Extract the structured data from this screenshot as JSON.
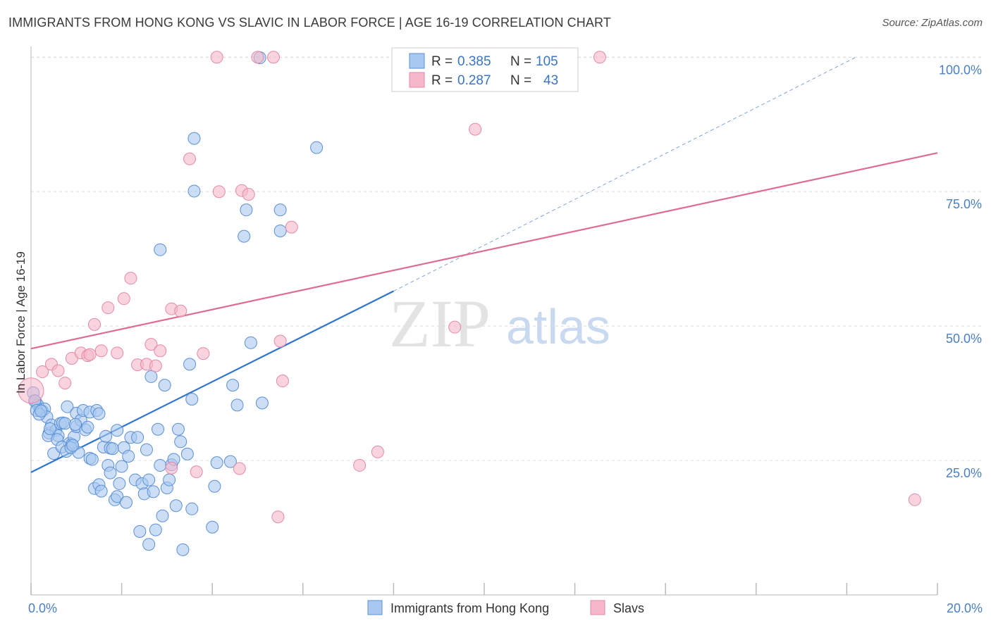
{
  "title": "IMMIGRANTS FROM HONG KONG VS SLAVIC IN LABOR FORCE | AGE 16-19 CORRELATION CHART",
  "source": "Source: ZipAtlas.com",
  "watermark": {
    "zip": "ZIP",
    "atlas": "atlas"
  },
  "colors": {
    "blue_fill": "#a9c8ef",
    "blue_stroke": "#5b8fd6",
    "blue_line": "#2e73cf",
    "pink_fill": "#f5b7c9",
    "pink_stroke": "#e58aa7",
    "pink_line": "#e06b92",
    "tick_text": "#4a7fc4",
    "grid": "#dddddd"
  },
  "legend": {
    "rows": [
      {
        "r_label": "R = ",
        "r_value": "0.385",
        "n_label": "N = ",
        "n_value": "105"
      },
      {
        "r_label": "R = ",
        "r_value": "0.287",
        "n_label": "N = ",
        "n_value": "43"
      }
    ]
  },
  "chart_data": {
    "type": "scatter",
    "title": "IMMIGRANTS FROM HONG KONG VS SLAVIC IN LABOR FORCE | AGE 16-19 CORRELATION CHART",
    "xlabel": "",
    "ylabel": "In Labor Force | Age 16-19",
    "xlim": [
      0,
      20
    ],
    "ylim": [
      0,
      102
    ],
    "x_tick_labels": [
      "0.0%",
      "20.0%"
    ],
    "y_ticks": [
      25,
      50,
      75,
      100
    ],
    "y_tick_labels": [
      "25.0%",
      "50.0%",
      "75.0%",
      "100.0%"
    ],
    "grid": true,
    "legend_position": "top-center",
    "series": [
      {
        "name": "Immigrants from Hong Kong",
        "color": "#a9c8ef",
        "trend": {
          "x0": 0,
          "y0": 22.8,
          "x1": 8.0,
          "y1": 56.5,
          "dashed_to_x": 18.2,
          "dashed_to_y": 100
        },
        "points": [
          [
            0.05,
            37.6
          ],
          [
            0.1,
            36.0
          ],
          [
            0.15,
            35.3
          ],
          [
            0.2,
            34.5
          ],
          [
            0.25,
            34.2
          ],
          [
            0.3,
            34.6
          ],
          [
            0.35,
            33.1
          ],
          [
            0.4,
            30.1
          ],
          [
            0.45,
            31.6
          ],
          [
            0.5,
            26.3
          ],
          [
            0.55,
            30.6
          ],
          [
            0.6,
            29.6
          ],
          [
            0.65,
            31.9
          ],
          [
            0.7,
            32.0
          ],
          [
            0.75,
            31.9
          ],
          [
            0.8,
            35.0
          ],
          [
            0.85,
            28.2
          ],
          [
            0.9,
            28.0
          ],
          [
            0.95,
            29.4
          ],
          [
            1.0,
            31.3
          ],
          [
            1.0,
            33.8
          ],
          [
            1.05,
            26.5
          ],
          [
            1.1,
            32.5
          ],
          [
            1.15,
            34.3
          ],
          [
            1.2,
            30.7
          ],
          [
            1.25,
            31.2
          ],
          [
            1.3,
            25.4
          ],
          [
            1.3,
            34.0
          ],
          [
            1.35,
            25.2
          ],
          [
            1.4,
            19.8
          ],
          [
            1.45,
            34.3
          ],
          [
            1.5,
            20.5
          ],
          [
            1.5,
            33.7
          ],
          [
            1.55,
            19.3
          ],
          [
            1.6,
            27.5
          ],
          [
            1.65,
            29.5
          ],
          [
            1.7,
            24.1
          ],
          [
            1.75,
            22.7
          ],
          [
            1.75,
            27.3
          ],
          [
            1.8,
            27.2
          ],
          [
            1.85,
            17.7
          ],
          [
            1.9,
            18.3
          ],
          [
            1.9,
            30.6
          ],
          [
            1.95,
            20.7
          ],
          [
            2.0,
            23.9
          ],
          [
            2.05,
            27.4
          ],
          [
            2.1,
            17.2
          ],
          [
            2.15,
            25.8
          ],
          [
            2.2,
            29.3
          ],
          [
            2.3,
            21.4
          ],
          [
            2.35,
            29.3
          ],
          [
            2.4,
            11.8
          ],
          [
            2.45,
            20.7
          ],
          [
            2.5,
            18.8
          ],
          [
            2.55,
            27.0
          ],
          [
            2.6,
            21.4
          ],
          [
            2.6,
            9.4
          ],
          [
            2.65,
            40.6
          ],
          [
            2.7,
            19.2
          ],
          [
            2.75,
            12.1
          ],
          [
            2.8,
            30.8
          ],
          [
            2.85,
            24.1
          ],
          [
            2.9,
            14.7
          ],
          [
            2.95,
            39.0
          ],
          [
            3.0,
            19.9
          ],
          [
            3.05,
            21.4
          ],
          [
            3.1,
            24.2
          ],
          [
            3.15,
            25.2
          ],
          [
            3.2,
            16.6
          ],
          [
            3.25,
            30.8
          ],
          [
            3.3,
            28.5
          ],
          [
            3.35,
            8.4
          ],
          [
            3.45,
            26.2
          ],
          [
            3.5,
            42.9
          ],
          [
            3.55,
            36.4
          ],
          [
            3.55,
            16.0
          ],
          [
            3.6,
            84.9
          ],
          [
            3.6,
            75.1
          ],
          [
            2.85,
            64.2
          ],
          [
            4.0,
            12.6
          ],
          [
            4.05,
            20.2
          ],
          [
            4.1,
            24.6
          ],
          [
            4.4,
            24.8
          ],
          [
            4.45,
            39.0
          ],
          [
            4.55,
            35.3
          ],
          [
            4.7,
            66.7
          ],
          [
            4.75,
            71.6
          ],
          [
            4.85,
            46.9
          ],
          [
            5.05,
            99.9
          ],
          [
            5.1,
            35.7
          ],
          [
            5.5,
            71.6
          ],
          [
            5.5,
            67.7
          ],
          [
            6.3,
            83.2
          ],
          [
            0.08,
            36.1
          ],
          [
            0.12,
            34.3
          ],
          [
            0.18,
            33.6
          ],
          [
            0.22,
            34.2
          ],
          [
            0.38,
            29.6
          ],
          [
            0.42,
            30.9
          ],
          [
            0.58,
            28.9
          ],
          [
            0.68,
            27.5
          ],
          [
            0.78,
            26.7
          ],
          [
            0.88,
            27.4
          ],
          [
            0.92,
            27.8
          ],
          [
            0.98,
            31.7
          ]
        ]
      },
      {
        "name": "Slavs",
        "color": "#f5b7c9",
        "trend": {
          "x0": 0,
          "y0": 45.8,
          "x1": 20,
          "y1": 82.2
        },
        "points": [
          [
            0.0,
            38.0
          ],
          [
            0.25,
            41.5
          ],
          [
            0.45,
            42.9
          ],
          [
            0.6,
            41.7
          ],
          [
            0.75,
            39.4
          ],
          [
            0.9,
            44.0
          ],
          [
            1.1,
            45.0
          ],
          [
            1.25,
            44.5
          ],
          [
            1.4,
            50.3
          ],
          [
            1.55,
            45.4
          ],
          [
            1.7,
            53.4
          ],
          [
            1.9,
            45.0
          ],
          [
            2.05,
            55.1
          ],
          [
            2.2,
            58.9
          ],
          [
            2.35,
            42.8
          ],
          [
            2.55,
            42.9
          ],
          [
            2.65,
            46.6
          ],
          [
            2.85,
            45.4
          ],
          [
            3.1,
            53.2
          ],
          [
            3.1,
            23.6
          ],
          [
            3.3,
            52.8
          ],
          [
            3.5,
            81.1
          ],
          [
            3.65,
            22.9
          ],
          [
            3.8,
            44.9
          ],
          [
            4.15,
            75.0
          ],
          [
            4.6,
            23.5
          ],
          [
            4.65,
            75.2
          ],
          [
            4.8,
            74.5
          ],
          [
            5.0,
            100.0
          ],
          [
            5.45,
            14.5
          ],
          [
            5.5,
            47.2
          ],
          [
            5.55,
            39.8
          ],
          [
            5.75,
            68.4
          ],
          [
            4.1,
            100.0
          ],
          [
            5.35,
            100.0
          ],
          [
            7.25,
            24.1
          ],
          [
            7.65,
            26.6
          ],
          [
            9.35,
            49.8
          ],
          [
            9.8,
            86.6
          ],
          [
            12.55,
            100.0
          ],
          [
            19.5,
            17.7
          ],
          [
            1.3,
            44.7
          ],
          [
            2.75,
            42.6
          ]
        ]
      }
    ]
  },
  "bottom_legend": [
    {
      "label": "Immigrants from Hong Kong"
    },
    {
      "label": "Slavs"
    }
  ]
}
